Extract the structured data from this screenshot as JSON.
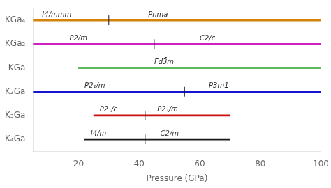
{
  "chart_data": {
    "type": "bar",
    "orientation": "horizontal",
    "xlabel": "Pressure (GPa)",
    "categories": [
      "KGa₄",
      "KGa₂",
      "KGa",
      "K₂Ga",
      "K₃Ga",
      "K₄Ga"
    ],
    "values": [
      [
        5,
        100
      ],
      [
        5,
        100
      ],
      [
        20,
        100
      ],
      [
        5,
        100
      ],
      [
        25,
        70
      ],
      [
        22,
        70
      ]
    ],
    "colors": [
      "#d4820a",
      "#d020c0",
      "#28a028",
      "#1515d0",
      "#cc1010",
      "#181818"
    ],
    "transitions": [
      30,
      45,
      null,
      55,
      42,
      42
    ],
    "annotations": [
      {
        "text": "I4/mmm",
        "x": 8,
        "category": "KGa₄"
      },
      {
        "text": "Pnma",
        "x": 43,
        "category": "KGa₄"
      },
      {
        "text": "P2/m",
        "x": 17,
        "category": "KGa₂"
      },
      {
        "text": "C2/c",
        "x": 60,
        "category": "KGa₂"
      },
      {
        "text": "Fd3̄m",
        "x": 45,
        "category": "KGa"
      },
      {
        "text": "P2₁/m",
        "x": 22,
        "category": "K₂Ga"
      },
      {
        "text": "P3m1",
        "x": 63,
        "category": "K₂Ga"
      },
      {
        "text": "P2₁/c",
        "x": 27,
        "category": "K₃Ga"
      },
      {
        "text": "P2₁/m",
        "x": 46,
        "category": "K₃Ga"
      },
      {
        "text": "I4/m",
        "x": 24,
        "category": "K₄Ga"
      },
      {
        "text": "C2/m",
        "x": 47,
        "category": "K₄Ga"
      }
    ],
    "xlim": [
      5,
      100
    ],
    "xticks": [
      20,
      40,
      60,
      80,
      100
    ],
    "grid": false
  }
}
